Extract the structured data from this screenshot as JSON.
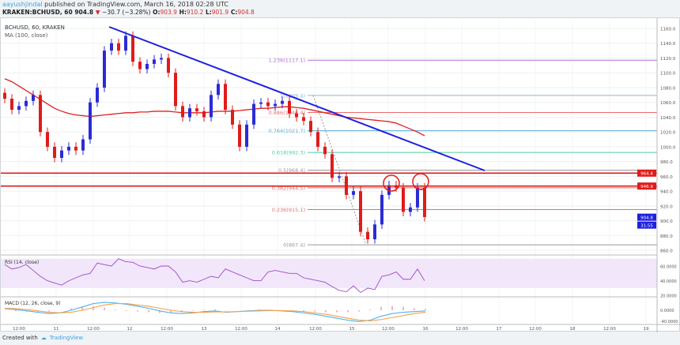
{
  "header": {
    "user": "aayushjindal",
    "published": " published on TradingView.com, March 16, 2018 02:28 UTC",
    "symbol_line": "KRAKEN:BCHUSD, 60",
    "last": "904.8",
    "change": "−30.7 (−3.28%)",
    "o_label": "O:",
    "o": "903.9",
    "h_label": "H:",
    "h": "910.2",
    "l_label": "L:",
    "l": "901.9",
    "c_label": "C:",
    "c": "904.8"
  },
  "legend": {
    "title": "BCHUSD, 60, KRAKEN",
    "ma": "MA (100, close)",
    "rsi": "RSI (14, close)",
    "macd": "MACD (12, 26, close, 9)"
  },
  "price_axis": [
    "1160.0",
    "1140.0",
    "1120.0",
    "1100.0",
    "1080.0",
    "1060.0",
    "1040.0",
    "1020.0",
    "1000.0",
    "980.0",
    "960.0",
    "940.0",
    "920.0",
    "900.0",
    "880.0",
    "860.0"
  ],
  "price_tags": {
    "res1": "964.4",
    "res2": "946.9",
    "last": "904.8",
    "countdown": "31:55"
  },
  "fib": [
    {
      "label": "1.236(1117.1)",
      "price": 1117.1,
      "color": "#b36ad8"
    },
    {
      "label": "1(1069.4)",
      "price": 1069.4,
      "color": "#8fb9c9"
    },
    {
      "label": "0.886(1046.4)",
      "price": 1046.4,
      "color": "#ef6a6a"
    },
    {
      "label": "0.764(1021.7)",
      "price": 1021.7,
      "color": "#5aa9d6"
    },
    {
      "label": "0.618(992.3)",
      "price": 992.3,
      "color": "#4ccf9c"
    },
    {
      "label": "0.5(968.4)",
      "price": 968.4,
      "color": "#999999"
    },
    {
      "label": "0.382(944.5)",
      "price": 944.5,
      "color": "#ef6a6a"
    },
    {
      "label": "0.236(915.1)",
      "price": 915.1,
      "color": "#e07070"
    },
    {
      "label": "0(867.4)",
      "price": 867.4,
      "color": "#999999"
    }
  ],
  "time_axis": [
    "12:00",
    "11",
    "12:00",
    "12",
    "12:00",
    "13",
    "12:00",
    "14",
    "12:00",
    "15",
    "12:00",
    "16",
    "12:00",
    "17",
    "12:00",
    "18",
    "12:00",
    "19"
  ],
  "rsi_axis": [
    "60.0000",
    "40.0000",
    "20.0000"
  ],
  "macd_axis": [
    "0.0000",
    "-40.0000"
  ],
  "footer": {
    "created": "Created with",
    "brand": "TradingView"
  },
  "colors": {
    "up": "#2b2bd6",
    "down": "#e01b1b",
    "ma": "#e02020",
    "trend": "#1f1fe0",
    "rsi": "#9b4dca",
    "macd": "#4fb3f0",
    "signal": "#f5a04a"
  },
  "chart_data": {
    "type": "candlestick",
    "symbol": "BCHUSD",
    "interval": "60",
    "ylim": [
      850,
      1170
    ],
    "closes": [
      1065,
      1050,
      1055,
      1062,
      1070,
      1020,
      1000,
      985,
      995,
      1000,
      995,
      1010,
      1060,
      1080,
      1130,
      1140,
      1130,
      1150,
      1115,
      1105,
      1112,
      1118,
      1120,
      1100,
      1055,
      1040,
      1052,
      1048,
      1040,
      1070,
      1085,
      1050,
      1030,
      1000,
      1030,
      1058,
      1060,
      1055,
      1058,
      1062,
      1045,
      1040,
      1035,
      1020,
      1000,
      990,
      958,
      960,
      935,
      940,
      885,
      875,
      895,
      935,
      948,
      945,
      912,
      918,
      945,
      905
    ],
    "ma100": [
      1092,
      1088,
      1082,
      1076,
      1070,
      1064,
      1058,
      1052,
      1048,
      1045,
      1043,
      1042,
      1041,
      1042,
      1043,
      1044,
      1045,
      1046,
      1046,
      1047,
      1047,
      1048,
      1048,
      1048,
      1047,
      1046,
      1046,
      1046,
      1046,
      1047,
      1048,
      1048,
      1048,
      1049,
      1050,
      1051,
      1052,
      1052,
      1053,
      1054,
      1054,
      1053,
      1052,
      1050,
      1048,
      1046,
      1044,
      1042,
      1040,
      1039,
      1038,
      1037,
      1036,
      1035,
      1034,
      1032,
      1028,
      1024,
      1020,
      1015
    ],
    "rsi": [
      62,
      56,
      58,
      62,
      54,
      46,
      40,
      37,
      34,
      40,
      44,
      48,
      50,
      64,
      62,
      60,
      70,
      66,
      65,
      60,
      58,
      56,
      60,
      60,
      52,
      38,
      40,
      38,
      42,
      46,
      44,
      56,
      52,
      48,
      44,
      40,
      40,
      52,
      54,
      52,
      50,
      50,
      44,
      42,
      40,
      38,
      32,
      27,
      25,
      33,
      24,
      30,
      28,
      46,
      48,
      52,
      42,
      42,
      56,
      40
    ],
    "macd": [
      5,
      2,
      -2,
      -6,
      -10,
      -8,
      0,
      10,
      20,
      24,
      22,
      18,
      12,
      6,
      -2,
      -8,
      -10,
      -8,
      -4,
      -2,
      -6,
      -4,
      -2,
      0,
      0,
      -2,
      -4,
      -8,
      -12,
      -18,
      -24,
      -30,
      -34,
      -30,
      -18,
      -10,
      -6,
      -4,
      -2
    ],
    "signal": [
      6,
      5,
      2,
      -2,
      -6,
      -8,
      -6,
      0,
      8,
      16,
      20,
      20,
      16,
      12,
      6,
      0,
      -4,
      -6,
      -6,
      -5,
      -5,
      -4,
      -3,
      -2,
      -1,
      -1,
      -2,
      -4,
      -8,
      -12,
      -18,
      -24,
      -30,
      -32,
      -28,
      -22,
      -16,
      -10,
      -6
    ],
    "resistance": [
      964.4,
      946.9
    ]
  }
}
